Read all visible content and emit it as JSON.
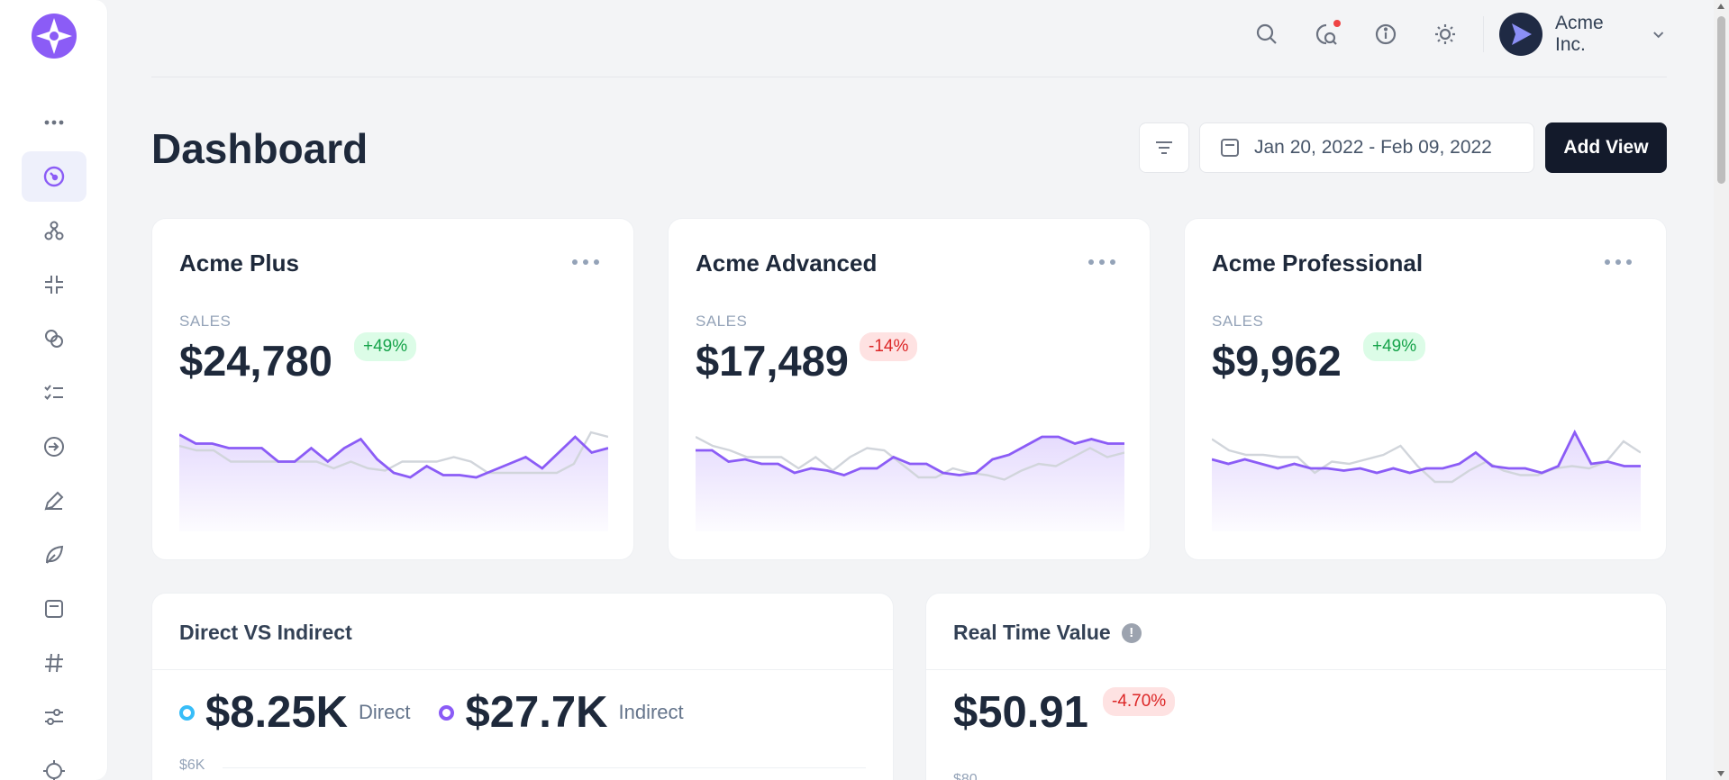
{
  "header": {
    "account_name": "Acme Inc."
  },
  "page": {
    "title": "Dashboard",
    "date_range": "Jan 20, 2022 - Feb 09, 2022",
    "add_view_label": "Add View"
  },
  "cards": [
    {
      "title": "Acme Plus",
      "label": "SALES",
      "amount": "$24,780",
      "change": "+49%",
      "trend": "up",
      "current": [
        86,
        78,
        78,
        74,
        74,
        74,
        62,
        62,
        74,
        62,
        74,
        82,
        64,
        52,
        48,
        58,
        50,
        50,
        48,
        54,
        60,
        66,
        56,
        70,
        84,
        70,
        74
      ],
      "previous": [
        76,
        72,
        72,
        62,
        62,
        62,
        62,
        62,
        62,
        56,
        62,
        56,
        54,
        62,
        62,
        62,
        66,
        62,
        52,
        52,
        52,
        52,
        52,
        60,
        88,
        84
      ]
    },
    {
      "title": "Acme Advanced",
      "label": "SALES",
      "amount": "$17,489",
      "change": "-14%",
      "trend": "down",
      "current": [
        72,
        72,
        62,
        64,
        60,
        60,
        52,
        56,
        54,
        50,
        56,
        56,
        66,
        60,
        60,
        52,
        50,
        52,
        64,
        68,
        76,
        84,
        84,
        78,
        82,
        78,
        78
      ],
      "previous": [
        84,
        76,
        72,
        66,
        66,
        66,
        56,
        66,
        54,
        66,
        74,
        72,
        60,
        48,
        48,
        56,
        52,
        50,
        46,
        54,
        60,
        58,
        66,
        74,
        66,
        70
      ]
    },
    {
      "title": "Acme Professional",
      "label": "SALES",
      "amount": "$9,962",
      "change": "+49%",
      "trend": "up",
      "current": [
        64,
        60,
        64,
        60,
        56,
        60,
        56,
        56,
        54,
        56,
        52,
        56,
        52,
        56,
        56,
        60,
        70,
        58,
        56,
        56,
        52,
        58,
        88,
        60,
        62,
        58,
        58
      ],
      "previous": [
        82,
        72,
        68,
        68,
        66,
        66,
        52,
        62,
        60,
        64,
        68,
        76,
        58,
        44,
        44,
        54,
        62,
        54,
        50,
        50,
        56,
        58,
        56,
        62,
        80,
        70
      ]
    }
  ],
  "direct_indirect": {
    "title": "Direct VS Indirect",
    "direct_value": "$8.25K",
    "direct_label": "Direct",
    "indirect_value": "$27.7K",
    "indirect_label": "Indirect",
    "y_tick_top": "$6K",
    "direct_color": "#38bdf8",
    "indirect_color": "#8b5cf6"
  },
  "real_time": {
    "title": "Real Time Value",
    "value": "$50.91",
    "change": "-4.70%",
    "y_tick_top": "$80"
  },
  "colors": {
    "accent": "#8b5cf6",
    "primary_dark": "#131a2b"
  }
}
